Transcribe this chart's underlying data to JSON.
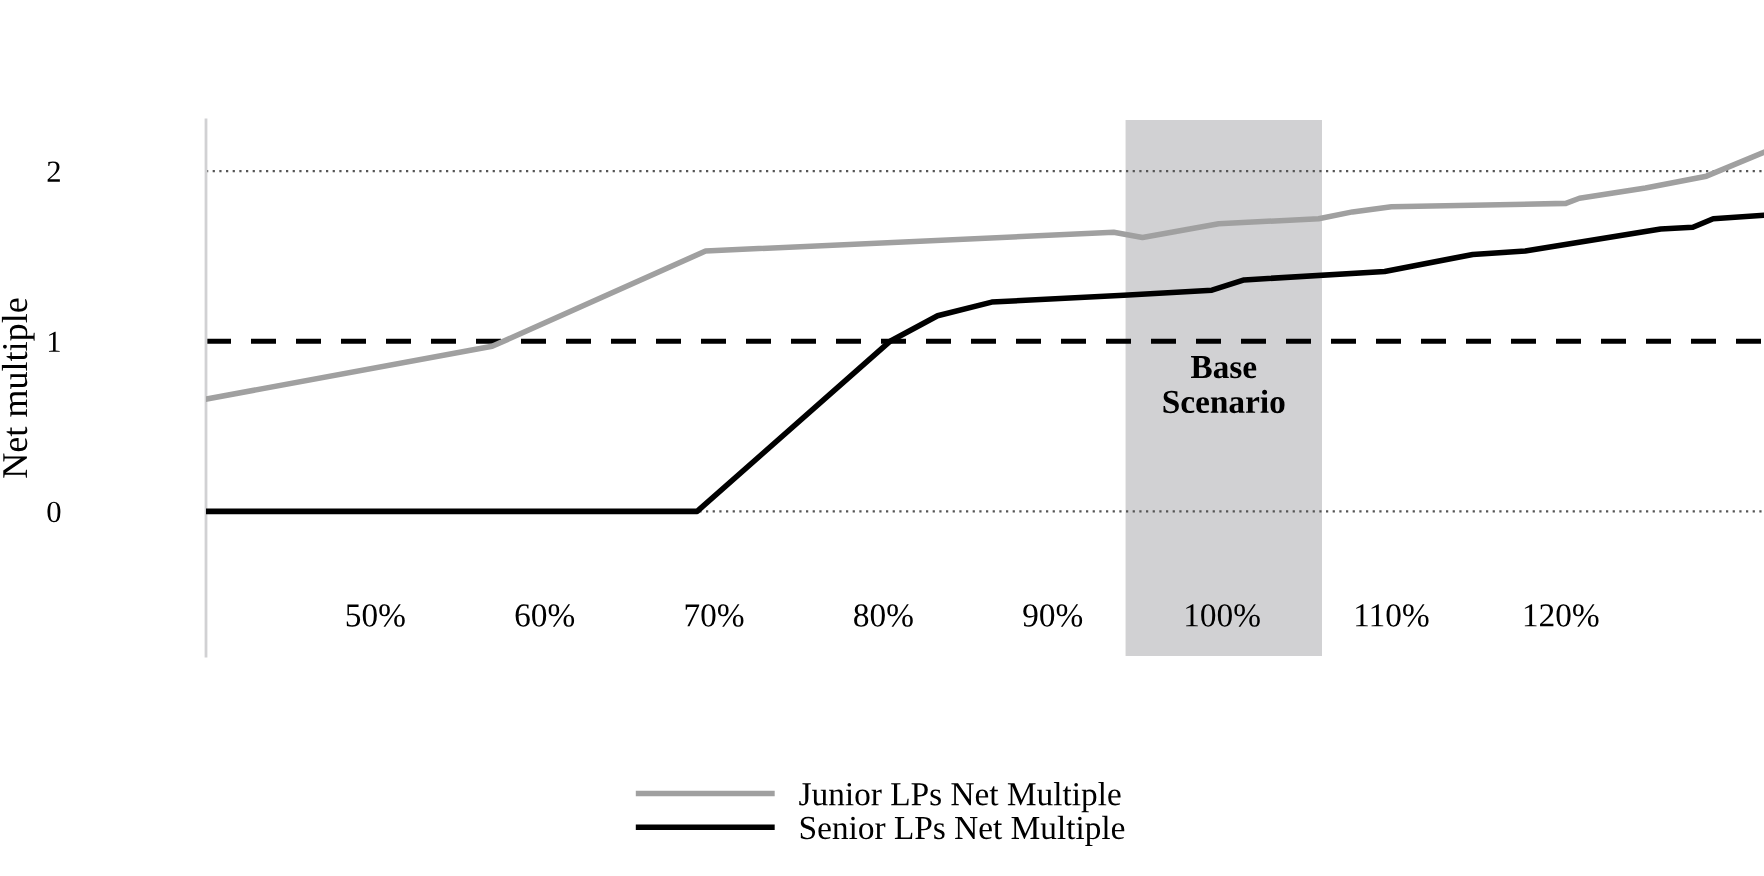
{
  "chart_data": {
    "type": "line",
    "ylabel": "Net multiple",
    "series": [
      {
        "name": "Junior LPs Net Multiple",
        "color": "#a0a0a0",
        "x": [
          40,
          56.9,
          69.5,
          93.6,
          95.3,
          99.8,
          105.7,
          107.7,
          110,
          120.3,
          121.1,
          125,
          128.6,
          132
        ],
        "values": [
          0.66,
          0.97,
          1.53,
          1.64,
          1.61,
          1.69,
          1.72,
          1.76,
          1.79,
          1.81,
          1.84,
          1.9,
          1.97,
          2.11
        ]
      },
      {
        "name": "Senior LPs Net Multiple",
        "color": "#000000",
        "x": [
          40,
          69,
          80.4,
          83.2,
          86.4,
          94.2,
          99.4,
          101.3,
          109.6,
          114.8,
          117.9,
          125.9,
          127.8,
          129,
          132
        ],
        "values": [
          0,
          0,
          1.0,
          1.15,
          1.23,
          1.27,
          1.3,
          1.36,
          1.41,
          1.51,
          1.53,
          1.66,
          1.67,
          1.72,
          1.74
        ]
      }
    ],
    "xlim": [
      40,
      132
    ],
    "ylim": [
      -0.85,
      2.3
    ],
    "xticks": [
      {
        "value": 50,
        "label": "50%"
      },
      {
        "value": 60,
        "label": "60%"
      },
      {
        "value": 70,
        "label": "70%"
      },
      {
        "value": 80,
        "label": "80%"
      },
      {
        "value": 90,
        "label": "90%"
      },
      {
        "value": 100,
        "label": "100%"
      },
      {
        "value": 110,
        "label": "110%"
      },
      {
        "value": 120,
        "label": "120%"
      }
    ],
    "yticks": [
      0,
      1,
      2
    ],
    "ref_lines": [
      {
        "axis": "y",
        "value": 1,
        "color": "#000000",
        "line_style": "dashed"
      }
    ],
    "bands": [
      {
        "axis": "x",
        "from": 94.3,
        "to": 105.9,
        "label": "Base\nScenario",
        "color": "#d1d1d3"
      }
    ],
    "grid": "y",
    "legend": "bottom",
    "marker": "none",
    "line_style": "solid"
  }
}
